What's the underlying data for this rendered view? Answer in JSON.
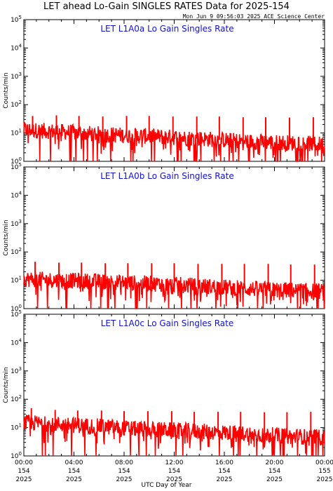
{
  "title": "LET ahead Lo-Gain SINGLES RATES Data for 2025-154",
  "timestamp": "Mon Jun  9 09:56:03 2025 ACE Science Center",
  "x_axis_label": "UTC Day of Year",
  "colors": {
    "series": "#ff0000",
    "panel_title": "#1010dd",
    "axes": "#000000"
  },
  "chart_data": [
    {
      "type": "line",
      "title": "LET L1A0a Lo Gain Singles Rate",
      "ylabel": "Counts/min",
      "yscale": "log",
      "ylim": [
        1,
        100000
      ],
      "yticks": [
        {
          "v": 1,
          "e": "0"
        },
        {
          "v": 10,
          "e": "1"
        },
        {
          "v": 100,
          "e": "2"
        },
        {
          "v": 1000,
          "e": "3"
        },
        {
          "v": 10000,
          "e": "4"
        },
        {
          "v": 100000,
          "e": "5"
        }
      ],
      "xlim_hours": [
        0,
        24
      ],
      "baseline_hours": [
        0,
        3,
        6,
        9,
        12,
        15,
        18,
        21,
        24
      ],
      "baseline_values": [
        13,
        11,
        9,
        8,
        7,
        6,
        5,
        4.5,
        4
      ],
      "spike_hours": [
        0.7,
        2.6,
        4.4,
        6.3,
        8.2,
        10.0,
        11.9,
        13.8,
        15.6,
        17.5,
        19.3,
        21.2,
        23.1
      ],
      "spike_values": [
        40,
        42,
        40,
        38,
        40,
        40,
        38,
        38,
        38,
        36,
        36,
        35,
        36
      ],
      "grid": false
    },
    {
      "type": "line",
      "title": "LET L1A0b Lo Gain Singles Rate",
      "ylabel": "Counts/min",
      "yscale": "log",
      "ylim": [
        1,
        100000
      ],
      "yticks": [
        {
          "v": 1,
          "e": "0"
        },
        {
          "v": 10,
          "e": "1"
        },
        {
          "v": 100,
          "e": "2"
        },
        {
          "v": 1000,
          "e": "3"
        },
        {
          "v": 10000,
          "e": "4"
        },
        {
          "v": 100000,
          "e": "5"
        }
      ],
      "xlim_hours": [
        0,
        24
      ],
      "baseline_hours": [
        0,
        3,
        6,
        9,
        12,
        15,
        18,
        21,
        24
      ],
      "baseline_values": [
        11,
        10,
        9,
        8,
        7,
        6,
        5,
        4.5,
        4
      ],
      "spike_hours": [
        0.9,
        2.8,
        4.6,
        6.5,
        8.3,
        10.2,
        12.0,
        13.9,
        15.8,
        17.6,
        19.5,
        21.3,
        23.2
      ],
      "spike_values": [
        45,
        42,
        42,
        40,
        40,
        40,
        40,
        38,
        38,
        38,
        38,
        36,
        36
      ],
      "grid": false
    },
    {
      "type": "line",
      "title": "LET L1A0c Lo Gain Singles Rate",
      "ylabel": "Counts/min",
      "yscale": "log",
      "ylim": [
        1,
        100000
      ],
      "yticks": [
        {
          "v": 1,
          "e": "0"
        },
        {
          "v": 10,
          "e": "1"
        },
        {
          "v": 100,
          "e": "2"
        },
        {
          "v": 1000,
          "e": "3"
        },
        {
          "v": 10000,
          "e": "4"
        },
        {
          "v": 100000,
          "e": "5"
        }
      ],
      "xlim_hours": [
        0,
        24
      ],
      "baseline_hours": [
        0,
        3,
        6,
        9,
        12,
        15,
        18,
        21,
        24
      ],
      "baseline_values": [
        15,
        13,
        11,
        9,
        8,
        7,
        6,
        5,
        4.5
      ],
      "spike_hours": [
        0.6,
        2.5,
        4.3,
        6.2,
        8.0,
        9.9,
        11.8,
        13.6,
        15.5,
        17.3,
        19.2,
        21.0,
        22.9
      ],
      "spike_values": [
        48,
        42,
        40,
        40,
        38,
        38,
        38,
        36,
        36,
        36,
        35,
        35,
        36
      ],
      "grid": false
    }
  ],
  "x_ticks": [
    {
      "hour": 0,
      "time": "00:00",
      "day": "154",
      "year": "2025"
    },
    {
      "hour": 4,
      "time": "04:00",
      "day": "154",
      "year": "2025"
    },
    {
      "hour": 8,
      "time": "08:00",
      "day": "154",
      "year": "2025"
    },
    {
      "hour": 12,
      "time": "12:00",
      "day": "154",
      "year": "2025"
    },
    {
      "hour": 16,
      "time": "16:00",
      "day": "154",
      "year": "2025"
    },
    {
      "hour": 20,
      "time": "20:00",
      "day": "154",
      "year": "2025"
    },
    {
      "hour": 24,
      "time": "00:00",
      "day": "155",
      "year": "2025"
    }
  ]
}
